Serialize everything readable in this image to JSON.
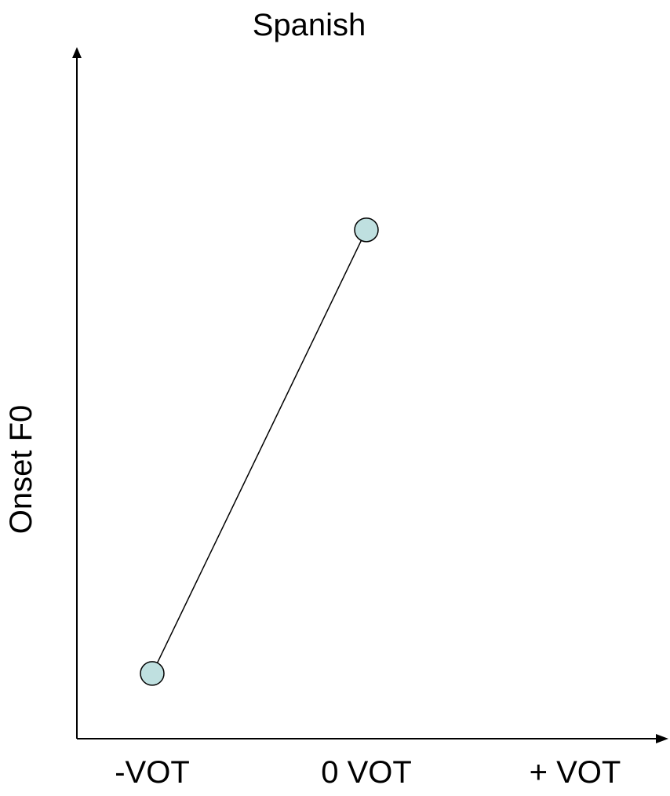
{
  "chart_data": {
    "type": "line",
    "title": "Spanish",
    "xlabel": "",
    "ylabel": "Onset F0",
    "categories": [
      "-VOT",
      "0 VOT",
      "+ VOT"
    ],
    "series": [
      {
        "points": [
          {
            "x": "-VOT",
            "y": 0.1
          },
          {
            "x": "0 VOT",
            "y": 0.78
          }
        ]
      }
    ],
    "ylim": [
      0,
      1
    ],
    "grid": false,
    "legend": "none",
    "colors": {
      "marker_fill": "#bfe0e0",
      "marker_stroke": "#000000",
      "line": "#000000",
      "axis": "#000000"
    }
  }
}
